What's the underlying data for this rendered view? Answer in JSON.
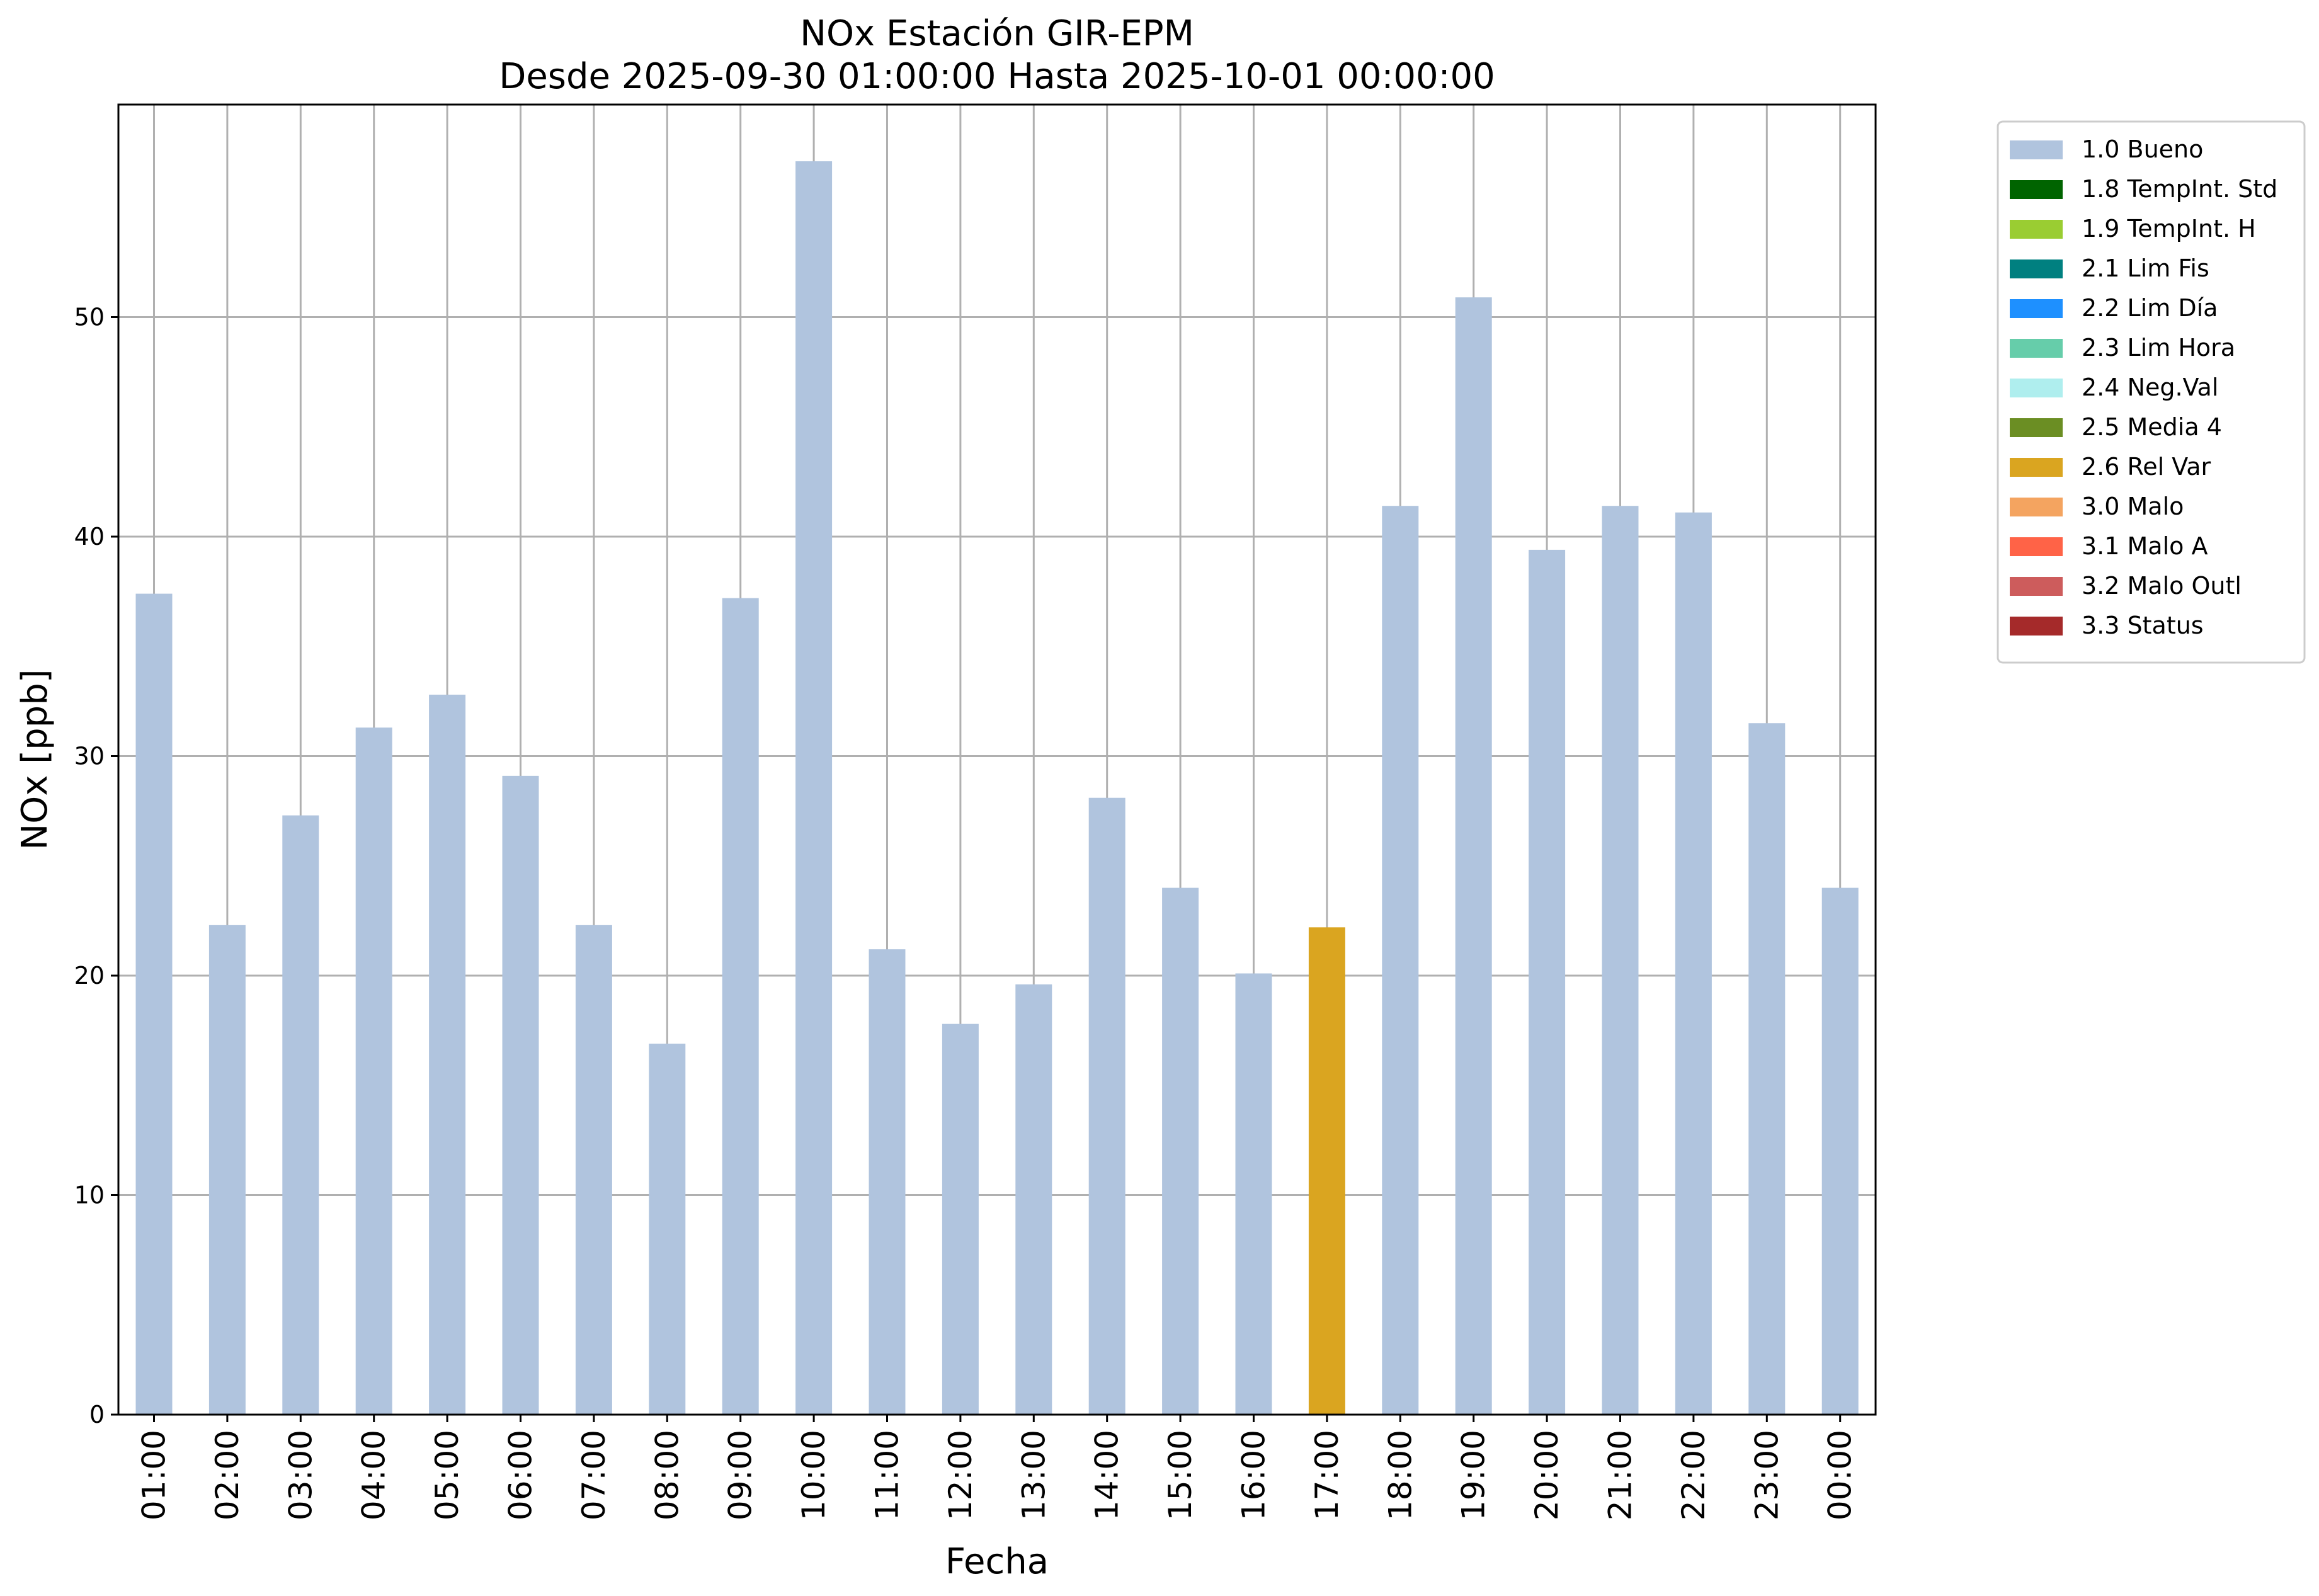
{
  "chart_data": {
    "type": "bar",
    "title": "NOx Estación GIR-EPM",
    "subtitle": "Desde 2025-09-30 01:00:00 Hasta 2025-10-01 00:00:00",
    "xlabel": "Fecha",
    "ylabel": "NOx [ppb]",
    "ylim": [
      0,
      60
    ],
    "yticks": [
      0,
      10,
      20,
      30,
      40,
      50
    ],
    "grid": true,
    "legend_position": "outside-top-right",
    "categories": [
      "01:00",
      "02:00",
      "03:00",
      "04:00",
      "05:00",
      "06:00",
      "07:00",
      "08:00",
      "09:00",
      "10:00",
      "11:00",
      "12:00",
      "13:00",
      "14:00",
      "15:00",
      "16:00",
      "17:00",
      "18:00",
      "19:00",
      "20:00",
      "21:00",
      "22:00",
      "23:00",
      "00:00"
    ],
    "values": [
      37.4,
      22.3,
      27.3,
      31.3,
      32.8,
      29.1,
      22.3,
      16.9,
      37.2,
      57.1,
      21.2,
      17.8,
      19.6,
      28.1,
      24.0,
      20.1,
      22.2,
      41.4,
      50.9,
      39.4,
      41.4,
      41.1,
      31.5,
      24.0
    ],
    "flags": [
      "1.0 Bueno",
      "1.0 Bueno",
      "1.0 Bueno",
      "1.0 Bueno",
      "1.0 Bueno",
      "1.0 Bueno",
      "1.0 Bueno",
      "1.0 Bueno",
      "1.0 Bueno",
      "1.0 Bueno",
      "1.0 Bueno",
      "1.0 Bueno",
      "1.0 Bueno",
      "1.0 Bueno",
      "1.0 Bueno",
      "1.0 Bueno",
      "2.6 Rel Var",
      "1.0 Bueno",
      "1.0 Bueno",
      "1.0 Bueno",
      "1.0 Bueno",
      "1.0 Bueno",
      "1.0 Bueno",
      "1.0 Bueno"
    ],
    "legend": [
      {
        "label": "1.0 Bueno",
        "color": "#b0c4de"
      },
      {
        "label": "1.8 TempInt. Std",
        "color": "#006400"
      },
      {
        "label": "1.9 TempInt. H",
        "color": "#9acd32"
      },
      {
        "label": "2.1 Lim Fis",
        "color": "#008080"
      },
      {
        "label": "2.2 Lim Día",
        "color": "#1e90ff"
      },
      {
        "label": "2.3 Lim Hora",
        "color": "#66cdaa"
      },
      {
        "label": "2.4 Neg.Val",
        "color": "#afeeee"
      },
      {
        "label": "2.5 Media 4",
        "color": "#6b8e23"
      },
      {
        "label": "2.6 Rel Var",
        "color": "#daa520"
      },
      {
        "label": "3.0 Malo",
        "color": "#f4a460"
      },
      {
        "label": "3.1 Malo A",
        "color": "#ff6347"
      },
      {
        "label": "3.2 Malo Outl",
        "color": "#cd5c5c"
      },
      {
        "label": "3.3 Status",
        "color": "#a52a2a"
      }
    ]
  }
}
